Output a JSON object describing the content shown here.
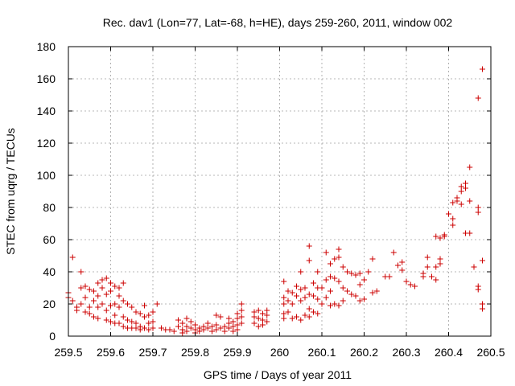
{
  "chart_data": {
    "type": "scatter",
    "title": "Rec. dav1 (Lon=77, Lat=-68, h=HE), days 259-260, 2011, window 002",
    "xlabel": "GPS time / Days of year 2011",
    "ylabel": "STEC from uqrg / TECUs",
    "xlim": [
      259.5,
      260.5
    ],
    "ylim": [
      0,
      180
    ],
    "xticks": [
      259.5,
      259.6,
      259.7,
      259.8,
      259.9,
      260.0,
      260.1,
      260.2,
      260.3,
      260.4,
      260.5
    ],
    "xtick_labels": [
      "259.5",
      "259.6",
      "259.7",
      "259.8",
      "259.9",
      "260",
      "260.1",
      "260.2",
      "260.3",
      "260.4",
      "260.5"
    ],
    "yticks": [
      0,
      20,
      40,
      60,
      80,
      100,
      120,
      140,
      160,
      180
    ],
    "ytick_labels": [
      "0",
      "20",
      "40",
      "60",
      "80",
      "100",
      "120",
      "140",
      "160",
      "180"
    ],
    "grid": true,
    "marker": "+",
    "marker_color": "#cc0000",
    "points": [
      [
        259.5,
        24
      ],
      [
        259.5,
        27
      ],
      [
        259.51,
        49
      ],
      [
        259.51,
        22
      ],
      [
        259.52,
        18
      ],
      [
        259.52,
        16
      ],
      [
        259.53,
        40
      ],
      [
        259.53,
        30
      ],
      [
        259.53,
        20
      ],
      [
        259.54,
        31
      ],
      [
        259.54,
        24
      ],
      [
        259.54,
        15
      ],
      [
        259.55,
        29
      ],
      [
        259.55,
        18
      ],
      [
        259.55,
        14
      ],
      [
        259.56,
        28
      ],
      [
        259.56,
        22
      ],
      [
        259.56,
        12
      ],
      [
        259.57,
        33
      ],
      [
        259.57,
        25
      ],
      [
        259.57,
        18
      ],
      [
        259.57,
        11
      ],
      [
        259.58,
        35
      ],
      [
        259.58,
        30
      ],
      [
        259.58,
        20
      ],
      [
        259.59,
        36
      ],
      [
        259.59,
        26
      ],
      [
        259.59,
        16
      ],
      [
        259.59,
        10
      ],
      [
        259.6,
        33
      ],
      [
        259.6,
        28
      ],
      [
        259.6,
        19
      ],
      [
        259.6,
        9
      ],
      [
        259.61,
        31
      ],
      [
        259.61,
        20
      ],
      [
        259.61,
        13
      ],
      [
        259.61,
        8
      ],
      [
        259.62,
        30
      ],
      [
        259.62,
        25
      ],
      [
        259.62,
        18
      ],
      [
        259.62,
        8
      ],
      [
        259.63,
        33
      ],
      [
        259.63,
        22
      ],
      [
        259.63,
        12
      ],
      [
        259.63,
        6
      ],
      [
        259.64,
        20
      ],
      [
        259.64,
        10
      ],
      [
        259.64,
        5
      ],
      [
        259.65,
        18
      ],
      [
        259.65,
        9
      ],
      [
        259.65,
        5
      ],
      [
        259.66,
        15
      ],
      [
        259.66,
        8
      ],
      [
        259.66,
        5
      ],
      [
        259.67,
        14
      ],
      [
        259.67,
        6
      ],
      [
        259.67,
        4
      ],
      [
        259.68,
        19
      ],
      [
        259.68,
        12
      ],
      [
        259.68,
        5
      ],
      [
        259.69,
        13
      ],
      [
        259.69,
        8
      ],
      [
        259.69,
        4
      ],
      [
        259.7,
        15
      ],
      [
        259.7,
        9
      ],
      [
        259.7,
        5
      ],
      [
        259.71,
        20
      ],
      [
        259.72,
        5
      ],
      [
        259.73,
        4
      ],
      [
        259.74,
        4
      ],
      [
        259.75,
        3
      ],
      [
        259.76,
        10
      ],
      [
        259.76,
        6
      ],
      [
        259.77,
        8
      ],
      [
        259.77,
        4
      ],
      [
        259.77,
        2
      ],
      [
        259.78,
        11
      ],
      [
        259.78,
        6
      ],
      [
        259.78,
        3
      ],
      [
        259.79,
        9
      ],
      [
        259.79,
        5
      ],
      [
        259.8,
        7
      ],
      [
        259.8,
        4
      ],
      [
        259.8,
        2
      ],
      [
        259.81,
        5
      ],
      [
        259.81,
        3
      ],
      [
        259.82,
        6
      ],
      [
        259.82,
        4
      ],
      [
        259.83,
        8
      ],
      [
        259.83,
        5
      ],
      [
        259.84,
        6
      ],
      [
        259.84,
        3
      ],
      [
        259.85,
        13
      ],
      [
        259.85,
        7
      ],
      [
        259.85,
        4
      ],
      [
        259.86,
        12
      ],
      [
        259.86,
        5
      ],
      [
        259.87,
        6
      ],
      [
        259.87,
        3
      ],
      [
        259.88,
        11
      ],
      [
        259.88,
        8
      ],
      [
        259.88,
        5
      ],
      [
        259.89,
        9
      ],
      [
        259.89,
        6
      ],
      [
        259.89,
        3
      ],
      [
        259.9,
        14
      ],
      [
        259.9,
        11
      ],
      [
        259.9,
        7
      ],
      [
        259.9,
        4
      ],
      [
        259.91,
        20
      ],
      [
        259.91,
        16
      ],
      [
        259.91,
        12
      ],
      [
        259.91,
        8
      ],
      [
        259.94,
        15
      ],
      [
        259.94,
        12
      ],
      [
        259.94,
        8
      ],
      [
        259.95,
        16
      ],
      [
        259.95,
        11
      ],
      [
        259.95,
        6
      ],
      [
        259.96,
        14
      ],
      [
        259.96,
        10
      ],
      [
        259.96,
        7
      ],
      [
        259.97,
        16
      ],
      [
        259.97,
        13
      ],
      [
        259.97,
        9
      ],
      [
        260.01,
        34
      ],
      [
        260.01,
        24
      ],
      [
        260.01,
        20
      ],
      [
        260.01,
        14
      ],
      [
        260.01,
        11
      ],
      [
        260.02,
        28
      ],
      [
        260.02,
        22
      ],
      [
        260.02,
        15
      ],
      [
        260.03,
        27
      ],
      [
        260.03,
        20
      ],
      [
        260.03,
        11
      ],
      [
        260.04,
        31
      ],
      [
        260.04,
        25
      ],
      [
        260.04,
        12
      ],
      [
        260.05,
        40
      ],
      [
        260.05,
        29
      ],
      [
        260.05,
        22
      ],
      [
        260.05,
        10
      ],
      [
        260.06,
        30
      ],
      [
        260.06,
        24
      ],
      [
        260.06,
        13
      ],
      [
        260.07,
        56
      ],
      [
        260.07,
        47
      ],
      [
        260.07,
        26
      ],
      [
        260.07,
        17
      ],
      [
        260.07,
        12
      ],
      [
        260.08,
        33
      ],
      [
        260.08,
        25
      ],
      [
        260.08,
        15
      ],
      [
        260.09,
        40
      ],
      [
        260.09,
        30
      ],
      [
        260.09,
        23
      ],
      [
        260.09,
        14
      ],
      [
        260.1,
        30
      ],
      [
        260.1,
        20
      ],
      [
        260.11,
        52
      ],
      [
        260.11,
        35
      ],
      [
        260.11,
        24
      ],
      [
        260.12,
        45
      ],
      [
        260.12,
        37
      ],
      [
        260.12,
        28
      ],
      [
        260.12,
        19
      ],
      [
        260.13,
        48
      ],
      [
        260.13,
        36
      ],
      [
        260.13,
        20
      ],
      [
        260.14,
        54
      ],
      [
        260.14,
        49
      ],
      [
        260.14,
        34
      ],
      [
        260.14,
        19
      ],
      [
        260.15,
        43
      ],
      [
        260.15,
        30
      ],
      [
        260.15,
        22
      ],
      [
        260.16,
        40
      ],
      [
        260.16,
        28
      ],
      [
        260.17,
        39
      ],
      [
        260.17,
        26
      ],
      [
        260.18,
        38
      ],
      [
        260.18,
        25
      ],
      [
        260.19,
        39
      ],
      [
        260.19,
        32
      ],
      [
        260.19,
        22
      ],
      [
        260.2,
        35
      ],
      [
        260.2,
        23
      ],
      [
        260.21,
        40
      ],
      [
        260.22,
        48
      ],
      [
        260.22,
        27
      ],
      [
        260.23,
        28
      ],
      [
        260.25,
        37
      ],
      [
        260.26,
        37
      ],
      [
        260.27,
        52
      ],
      [
        260.28,
        44
      ],
      [
        260.29,
        46
      ],
      [
        260.29,
        41
      ],
      [
        260.3,
        34
      ],
      [
        260.31,
        32
      ],
      [
        260.32,
        31
      ],
      [
        260.34,
        39
      ],
      [
        260.34,
        37
      ],
      [
        260.35,
        49
      ],
      [
        260.35,
        43
      ],
      [
        260.36,
        37
      ],
      [
        260.37,
        62
      ],
      [
        260.37,
        43
      ],
      [
        260.37,
        35
      ],
      [
        260.38,
        61
      ],
      [
        260.38,
        48
      ],
      [
        260.38,
        45
      ],
      [
        260.39,
        63
      ],
      [
        260.39,
        62
      ],
      [
        260.4,
        76
      ],
      [
        260.41,
        83
      ],
      [
        260.41,
        73
      ],
      [
        260.41,
        69
      ],
      [
        260.42,
        86
      ],
      [
        260.42,
        84
      ],
      [
        260.43,
        93
      ],
      [
        260.43,
        90
      ],
      [
        260.43,
        82
      ],
      [
        260.44,
        95
      ],
      [
        260.44,
        92
      ],
      [
        260.44,
        64
      ],
      [
        260.45,
        84
      ],
      [
        260.45,
        105
      ],
      [
        260.45,
        64
      ],
      [
        260.46,
        43
      ],
      [
        260.47,
        148
      ],
      [
        260.47,
        80
      ],
      [
        260.47,
        77
      ],
      [
        260.47,
        31
      ],
      [
        260.47,
        29
      ],
      [
        260.48,
        166
      ],
      [
        260.48,
        47
      ],
      [
        260.48,
        20
      ],
      [
        260.48,
        17
      ]
    ]
  }
}
